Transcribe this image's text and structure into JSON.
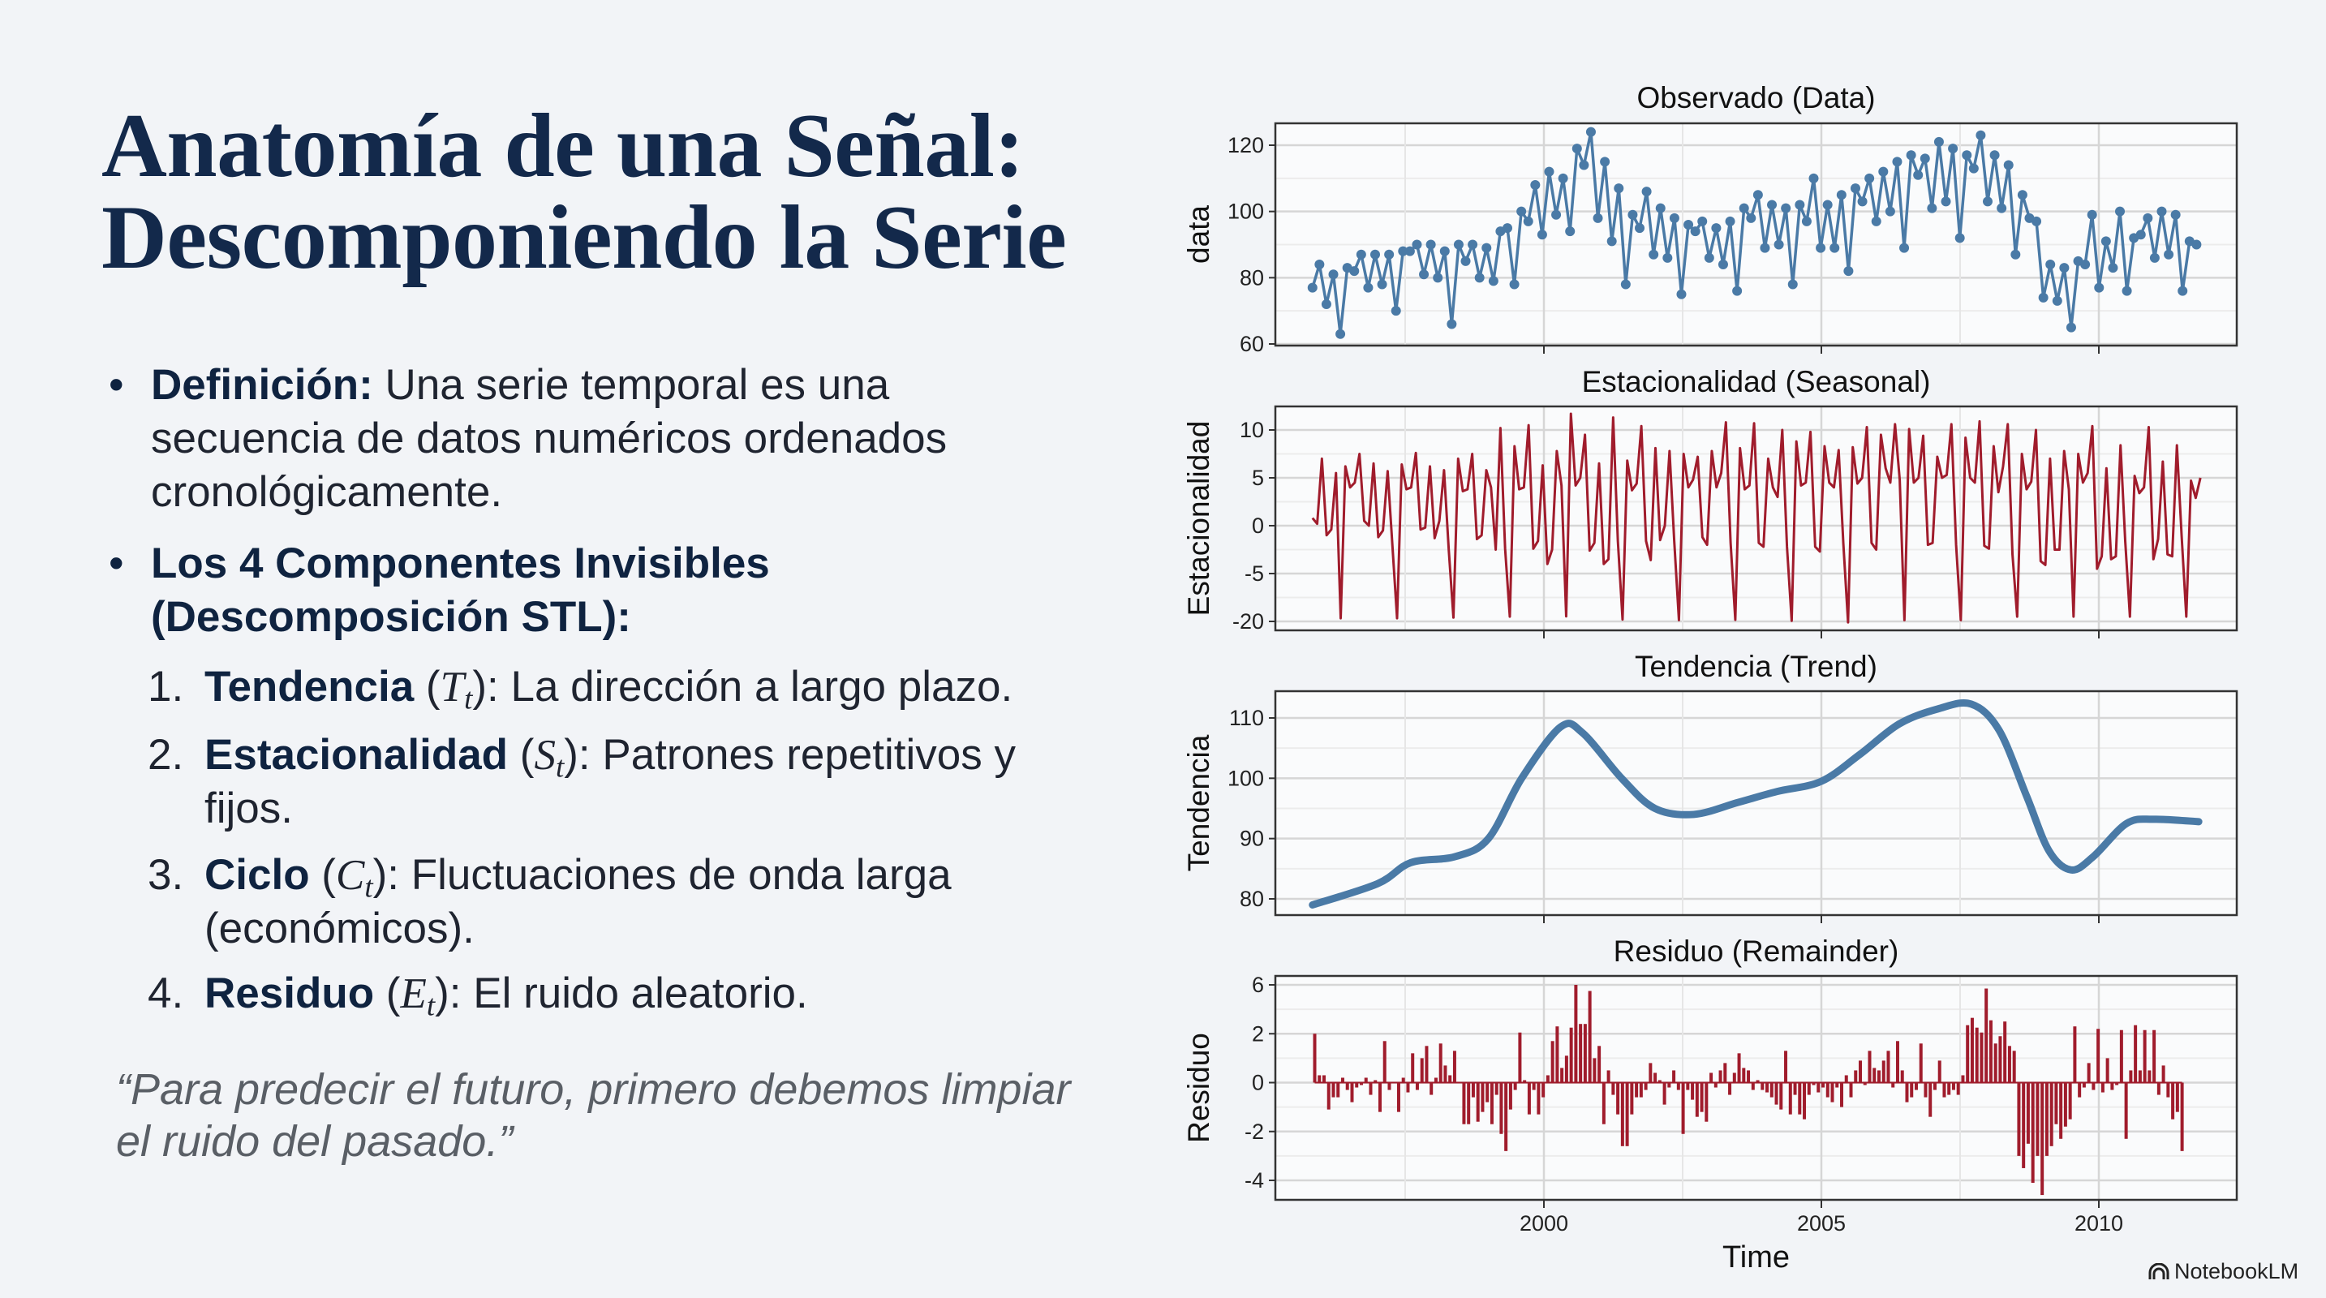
{
  "slide": {
    "title_lines": [
      "Anatomía de una Señal:",
      "Descomponiendo la Serie"
    ],
    "bullets": [
      {
        "bold": "Definición:",
        "text": " Una serie temporal es una secuencia de datos numéricos ordenados cronológicamente."
      },
      {
        "bold": "Los 4 Componentes Invisibles (Descomposición STL):",
        "text": ""
      }
    ],
    "components": [
      {
        "num": "1.",
        "label": "Tendencia",
        "pre": " (",
        "sym": "T",
        "sub": "t",
        "desc": "): La dirección a largo plazo."
      },
      {
        "num": "2.",
        "label": "Estacionalidad",
        "pre": " (",
        "sym": "S",
        "sub": "t",
        "desc": "): Patrones repetitivos y fijos."
      },
      {
        "num": "3.",
        "label": "Ciclo",
        "pre": " (",
        "sym": "C",
        "sub": "t",
        "desc": "): Fluctuaciones de onda larga (económicos)."
      },
      {
        "num": "4.",
        "label": "Residuo",
        "pre": " (",
        "sym": "E",
        "sub": "t",
        "desc": "): El ruido aleatorio."
      }
    ],
    "quote": "“Para predecir el futuro, primero debemos limpiar el ruido del pasado.”",
    "brand": {
      "name": "NotebookLM",
      "icon": "notebooklm-logo-icon"
    },
    "colors": {
      "title": "#13294b",
      "blue": "#4a7aa6",
      "red": "#a01c2c",
      "background": "#f2f4f7"
    }
  },
  "chart_data": [
    {
      "type": "line",
      "title": "Observado (Data)",
      "ylabel": "data",
      "yticks": [
        60,
        80,
        100,
        120
      ],
      "markers": true,
      "color": "#4a7aa6",
      "x_range": [
        1995.83,
        2011.76
      ],
      "values": [
        77,
        84,
        72,
        81,
        63,
        83,
        82,
        87,
        77,
        87,
        78,
        87,
        70,
        88,
        88,
        90,
        81,
        90,
        80,
        88,
        66,
        90,
        85,
        90,
        80,
        89,
        79,
        94,
        95,
        78,
        100,
        97,
        108,
        93,
        112,
        99,
        110,
        94,
        119,
        114,
        124,
        98,
        115,
        91,
        107,
        78,
        99,
        95,
        106,
        87,
        101,
        86,
        98,
        75,
        96,
        94,
        97,
        86,
        95,
        84,
        97,
        76,
        101,
        98,
        105,
        89,
        102,
        90,
        101,
        78,
        102,
        97,
        110,
        89,
        102,
        89,
        105,
        82,
        107,
        103,
        110,
        97,
        112,
        100,
        115,
        89,
        117,
        111,
        116,
        101,
        121,
        103,
        119,
        92,
        117,
        113,
        123,
        103,
        117,
        101,
        114,
        87,
        105,
        98,
        97,
        74,
        84,
        73,
        83,
        65,
        85,
        84,
        99,
        77,
        91,
        83,
        100,
        76,
        92,
        93,
        98,
        86,
        100,
        87,
        99,
        76,
        91,
        90
      ]
    },
    {
      "type": "line",
      "title": "Estacionalidad (Seasonal)",
      "ylabel": "Estacionalidad",
      "yticks": [
        -20,
        -5,
        0,
        5,
        10
      ],
      "color": "#a01c2c",
      "x_range": [
        1995.83,
        2011.83
      ],
      "values": [
        0.8,
        0.2,
        7,
        -1,
        -0.4,
        5.5,
        -19,
        6.2,
        4,
        4.5,
        7.5,
        0.5,
        0,
        6.5,
        -1.2,
        -0.5,
        5.7,
        -2,
        -19,
        6.4,
        3.8,
        4,
        7.6,
        -0.4,
        -0.2,
        6.2,
        -1.3,
        0.5,
        5.8,
        -2.5,
        -18.8,
        7,
        3.6,
        3.8,
        7.5,
        -1.4,
        -1,
        5.8,
        4,
        -2.5,
        10.2,
        -2.4,
        -18.5,
        8.3,
        3.8,
        4,
        10.5,
        -2.4,
        -1.6,
        6.3,
        -4,
        -2.5,
        7.8,
        4.2,
        -18.4,
        11.7,
        4.2,
        5,
        9.5,
        -2.6,
        -1.8,
        6.5,
        -4,
        -3.5,
        11.3,
        -1.6,
        -19.4,
        6.8,
        3.7,
        4.4,
        10.4,
        -1.6,
        -3.6,
        8.1,
        -1.5,
        0,
        7.8,
        -1.6,
        -19.6,
        7.5,
        4,
        4.8,
        7.2,
        -1.2,
        -2,
        7.8,
        4,
        5.5,
        10.8,
        -1.8,
        -19.5,
        8.1,
        3.8,
        4.2,
        10.7,
        -1.8,
        -2.2,
        7,
        4,
        3,
        10,
        -2.2,
        -19.8,
        8.8,
        4.2,
        4.5,
        9.8,
        -2.2,
        -2.7,
        8.3,
        4.5,
        4,
        7.9,
        -1.9,
        -20.3,
        8.2,
        4.4,
        5,
        10.3,
        -1.8,
        -2.5,
        9.5,
        6,
        4.5,
        10.6,
        4.8,
        -19.6,
        10.1,
        4.5,
        5,
        9.4,
        -2,
        -1.8,
        7.2,
        5,
        5.3,
        10.6,
        -2,
        -19.6,
        9.2,
        5,
        4.5,
        10.9,
        -2.1,
        -2.4,
        8.3,
        3.5,
        6.2,
        10.6,
        -3,
        -18.5,
        7.5,
        3.8,
        4.6,
        10,
        -3.7,
        -4.1,
        7,
        -2.5,
        -2.5,
        7.8,
        3.8,
        -18.5,
        7.5,
        4.5,
        5.5,
        10.4,
        -4.5,
        -3.2,
        6,
        -3.5,
        -3.2,
        8.4,
        -1.6,
        -18.5,
        5.2,
        3.4,
        4,
        10.3,
        -3.5,
        -1.4,
        6.7,
        -3,
        -3.2,
        8.4,
        -1,
        -18.5,
        4.7,
        2.9,
        5
      ]
    },
    {
      "type": "line",
      "title": "Tendencia (Trend)",
      "ylabel": "Tendencia",
      "yticks": [
        80,
        90,
        100,
        110
      ],
      "color": "#4a7aa6",
      "points": [
        [
          1995.83,
          79
        ],
        [
          1997.0,
          82.5
        ],
        [
          1997.6,
          86
        ],
        [
          1998.4,
          87
        ],
        [
          1999.0,
          90
        ],
        [
          1999.6,
          100
        ],
        [
          2000.3,
          108.5
        ],
        [
          2000.7,
          107.5
        ],
        [
          2001.4,
          100
        ],
        [
          2002.0,
          95
        ],
        [
          2002.7,
          94
        ],
        [
          2003.5,
          96
        ],
        [
          2004.2,
          97.8
        ],
        [
          2005.0,
          99.5
        ],
        [
          2005.7,
          104
        ],
        [
          2006.4,
          109
        ],
        [
          2007.1,
          111.5
        ],
        [
          2007.7,
          112.3
        ],
        [
          2008.2,
          108
        ],
        [
          2008.7,
          97
        ],
        [
          2009.1,
          88
        ],
        [
          2009.5,
          84.8
        ],
        [
          2009.9,
          87
        ],
        [
          2010.5,
          92.5
        ],
        [
          2011.0,
          93.2
        ],
        [
          2011.8,
          92.8
        ]
      ]
    },
    {
      "type": "bar",
      "title": "Residuo (Remainder)",
      "ylabel": "Residuo",
      "xlabel": "Time",
      "yticks": [
        -4,
        -2,
        0,
        2,
        6
      ],
      "xticks": [
        2000,
        2005,
        2010
      ],
      "color": "#a01c2c",
      "x_range": [
        1995.87,
        2011.5
      ],
      "values": [
        2,
        0.3,
        0.3,
        -1.1,
        -0.6,
        -0.6,
        0.2,
        -0.3,
        -0.8,
        -0.2,
        -0.1,
        0.2,
        -0.5,
        0.1,
        -1.2,
        1.7,
        -0.3,
        0,
        -1.2,
        0.2,
        -0.4,
        1.2,
        -0.3,
        1,
        1.5,
        -0.5,
        0.2,
        1.6,
        0.7,
        0.3,
        1.3,
        0,
        -1.7,
        -1.7,
        -0.6,
        -1.6,
        -1.2,
        -0.8,
        -1.7,
        -0.5,
        -2.1,
        -2.8,
        -1.1,
        -0.3,
        2.1,
        0.1,
        -1.3,
        -0.3,
        -1.3,
        -0.6,
        0.3,
        1.7,
        2.6,
        0.6,
        1.1,
        2.5,
        6,
        2.8,
        2.8,
        5.5,
        1,
        1.5,
        -1.7,
        0.5,
        -0.5,
        -1.3,
        -2.6,
        -2.6,
        -1.3,
        -0.6,
        -0.6,
        -0.3,
        0.8,
        0.4,
        0.1,
        -0.9,
        -0.2,
        0.5,
        -0.3,
        -2.1,
        -0.3,
        -0.7,
        -1.4,
        -1.2,
        -1.6,
        0.4,
        -0.2,
        0.5,
        0.8,
        -0.5,
        0.4,
        1.2,
        0.6,
        0.5,
        -0.3,
        0.1,
        -0.3,
        -0.4,
        -0.6,
        -0.9,
        -1.1,
        1.3,
        -1.3,
        -0.5,
        -1.3,
        -1.5,
        -0.5,
        -0.1,
        -0.4,
        -0.2,
        -0.6,
        -0.8,
        -0.2,
        -1,
        0.3,
        -0.6,
        0.5,
        0.9,
        -0.1,
        1.3,
        0.6,
        0.5,
        0.9,
        1.3,
        -0.2,
        1.7,
        0.5,
        -0.8,
        -0.6,
        -0.3,
        1.6,
        -0.6,
        -1.4,
        -0.3,
        0.9,
        -0.6,
        -0.5,
        -0.3,
        -0.5,
        0.3,
        2.7,
        3.3,
        2.5,
        2.1,
        5.7,
        3.1,
        1.6,
        1.9,
        3,
        1.5,
        1.3,
        -3,
        -3.5,
        -2.5,
        -4.1,
        -3,
        -4.6,
        -3,
        -2.6,
        -1.7,
        -2.3,
        -1.8,
        -1.5,
        2.6,
        -0.6,
        -0.2,
        0.8,
        -0.3,
        2.4,
        -0.4,
        1,
        -0.3,
        -0.1,
        2.3,
        -2.3,
        0.5,
        2.7,
        0.5,
        2.3,
        0.5,
        2.3,
        -0.5,
        0.7,
        -0.6,
        -1.5,
        -1.2,
        -2.8
      ]
    }
  ]
}
